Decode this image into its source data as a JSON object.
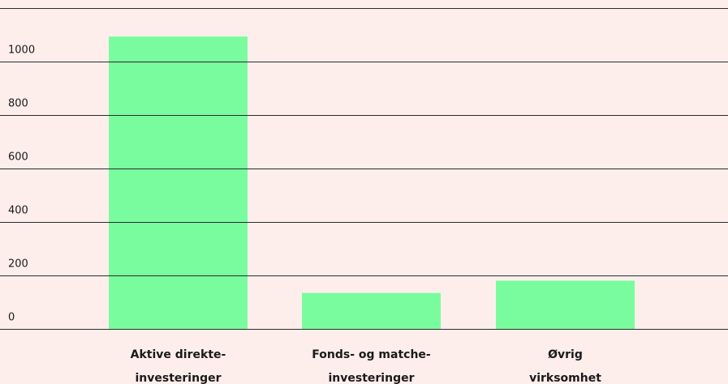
{
  "chart_data": {
    "type": "bar",
    "categories": [
      [
        "Aktive direkte-",
        "investeringer"
      ],
      [
        "Fonds- og matche-",
        "investeringer"
      ],
      [
        "Øvrig",
        "virksomhet"
      ]
    ],
    "values": [
      1095,
      136,
      182
    ],
    "color": "#79fc9e",
    "ylim": [
      0,
      1200
    ],
    "yticks": [
      0,
      200,
      400,
      600,
      800,
      1000
    ],
    "grid": true
  }
}
